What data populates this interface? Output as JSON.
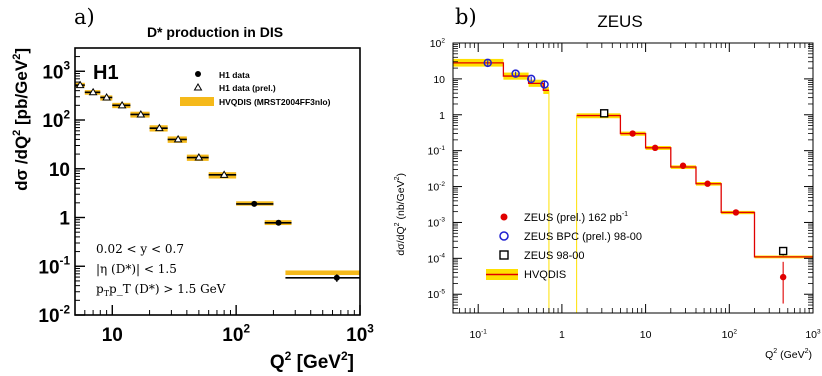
{
  "colors": {
    "band": "#f5b91a",
    "bandB": "#ffe000",
    "redLine": "#e00000",
    "zeus": "#e00000",
    "bpc": "#2020d0",
    "axis": "#000000"
  },
  "chart_data": [
    {
      "type": "scatter",
      "panel_label": "a)",
      "title": "D* production in DIS",
      "experiment": "H1",
      "xlabel": "Q² [GeV²]",
      "ylabel": "dσ /dQ² [pb/GeV²]",
      "x_scale": "log",
      "y_scale": "log",
      "xlim": [
        5,
        1000
      ],
      "ylim": [
        0.01,
        3000
      ],
      "x_ticks": [
        {
          "value": 10,
          "base": "10",
          "exp": ""
        },
        {
          "value": 100,
          "base": "10",
          "exp": "2"
        },
        {
          "value": 1000,
          "base": "10",
          "exp": "3"
        }
      ],
      "y_ticks": [
        {
          "value": 0.01,
          "base": "10",
          "exp": "-2"
        },
        {
          "value": 0.1,
          "base": "10",
          "exp": "-1"
        },
        {
          "value": 1,
          "base": "1",
          "exp": ""
        },
        {
          "value": 10,
          "base": "10",
          "exp": ""
        },
        {
          "value": 100,
          "base": "10",
          "exp": "2"
        },
        {
          "value": 1000,
          "base": "10",
          "exp": "3"
        }
      ],
      "legend": {
        "placement": "top-right",
        "entries": [
          "H1 data",
          "H1 data (prel.)",
          "HVQDIS (MRST2004FF3nlo)"
        ]
      },
      "cuts": [
        "0.02 < y < 0.7",
        "|η (D*)| < 1.5",
        "p_T (D*) > 1.5 GeV"
      ],
      "series": [
        {
          "name": "H1 data (prel.)",
          "marker": "triangle",
          "points": [
            {
              "x": 5.5,
              "xlo": 5,
              "xhi": 6,
              "y": 520
            },
            {
              "x": 7.0,
              "xlo": 6,
              "xhi": 8,
              "y": 370
            },
            {
              "x": 9.0,
              "xlo": 8,
              "xhi": 10,
              "y": 290
            },
            {
              "x": 12.0,
              "xlo": 10,
              "xhi": 14,
              "y": 200
            },
            {
              "x": 17.0,
              "xlo": 14,
              "xhi": 20,
              "y": 130
            },
            {
              "x": 24.0,
              "xlo": 20,
              "xhi": 28,
              "y": 68
            },
            {
              "x": 34.0,
              "xlo": 28,
              "xhi": 40,
              "y": 40
            },
            {
              "x": 50.0,
              "xlo": 40,
              "xhi": 60,
              "y": 17
            },
            {
              "x": 80.0,
              "xlo": 60,
              "xhi": 100,
              "y": 7.5
            }
          ]
        },
        {
          "name": "H1 data",
          "marker": "circle",
          "points": [
            {
              "x": 140,
              "xlo": 100,
              "xhi": 200,
              "y": 1.9
            },
            {
              "x": 220,
              "xlo": 170,
              "xhi": 280,
              "y": 0.78
            },
            {
              "x": 650,
              "xlo": 250,
              "xhi": 1000,
              "y": 0.058,
              "ylo": 0.048,
              "yhi": 0.068
            }
          ]
        }
      ],
      "theory_bands": [
        {
          "xlo": 5,
          "xhi": 6,
          "ylo": 470,
          "yhi": 580
        },
        {
          "xlo": 6,
          "xhi": 8,
          "ylo": 330,
          "yhi": 410
        },
        {
          "xlo": 8,
          "xhi": 10,
          "ylo": 250,
          "yhi": 320
        },
        {
          "xlo": 10,
          "xhi": 14,
          "ylo": 175,
          "yhi": 225
        },
        {
          "xlo": 14,
          "xhi": 20,
          "ylo": 112,
          "yhi": 148
        },
        {
          "xlo": 20,
          "xhi": 28,
          "ylo": 58,
          "yhi": 78
        },
        {
          "xlo": 28,
          "xhi": 40,
          "ylo": 34,
          "yhi": 46
        },
        {
          "xlo": 40,
          "xhi": 60,
          "ylo": 14.5,
          "yhi": 19.5
        },
        {
          "xlo": 60,
          "xhi": 100,
          "ylo": 6.3,
          "yhi": 8.5
        },
        {
          "xlo": 100,
          "xhi": 200,
          "ylo": 1.75,
          "yhi": 2.15
        },
        {
          "xlo": 170,
          "xhi": 280,
          "ylo": 0.7,
          "yhi": 0.88
        },
        {
          "xlo": 250,
          "xhi": 1000,
          "ylo": 0.066,
          "yhi": 0.082
        }
      ]
    },
    {
      "type": "line",
      "panel_label": "b)",
      "title": "ZEUS",
      "xlabel": "Q²  (GeV²)",
      "ylabel": "dσ/dQ²  (nb/GeV²)",
      "x_scale": "log",
      "y_scale": "log",
      "xlim": [
        0.05,
        1000
      ],
      "ylim": [
        3e-06,
        100
      ],
      "x_ticks": [
        {
          "value": 0.1,
          "base": "10",
          "exp": "-1"
        },
        {
          "value": 1,
          "base": "1",
          "exp": ""
        },
        {
          "value": 10,
          "base": "10",
          "exp": ""
        },
        {
          "value": 100,
          "base": "10",
          "exp": "2"
        },
        {
          "value": 1000,
          "base": "10",
          "exp": "3"
        }
      ],
      "y_ticks": [
        {
          "value": 1e-05,
          "base": "10",
          "exp": "-5"
        },
        {
          "value": 0.0001,
          "base": "10",
          "exp": "-4"
        },
        {
          "value": 0.001,
          "base": "10",
          "exp": "-3"
        },
        {
          "value": 0.01,
          "base": "10",
          "exp": "-2"
        },
        {
          "value": 0.1,
          "base": "10",
          "exp": "-1"
        },
        {
          "value": 1,
          "base": "1",
          "exp": ""
        },
        {
          "value": 10,
          "base": "10",
          "exp": ""
        },
        {
          "value": 100,
          "base": "10",
          "exp": "2"
        }
      ],
      "legend": {
        "placement": "bottom-left",
        "entries": [
          "ZEUS (prel.) 162 pb⁻¹",
          "ZEUS BPC (prel.) 98-00",
          "ZEUS 98-00",
          "HVQDIS"
        ]
      },
      "series": [
        {
          "name": "ZEUS BPC (prel.) 98-00",
          "marker": "open-circle",
          "points": [
            {
              "x": 0.13,
              "y": 28,
              "ylo": 23,
              "yhi": 33
            },
            {
              "x": 0.28,
              "y": 14,
              "ylo": 12,
              "yhi": 16
            },
            {
              "x": 0.43,
              "y": 10,
              "ylo": 8.5,
              "yhi": 11.5
            },
            {
              "x": 0.62,
              "y": 7,
              "ylo": 5.5,
              "yhi": 9
            }
          ]
        },
        {
          "name": "ZEUS 98-00",
          "marker": "open-square",
          "points": [
            {
              "x": 3.2,
              "y": 1.1
            },
            {
              "x": 440,
              "y": 0.00016,
              "ylo": 0.00012,
              "yhi": 0.0002
            }
          ]
        },
        {
          "name": "ZEUS (prel.) 162 pb⁻¹",
          "marker": "filled-circle",
          "points": [
            {
              "x": 7,
              "y": 0.3
            },
            {
              "x": 13,
              "y": 0.12
            },
            {
              "x": 28,
              "y": 0.038
            },
            {
              "x": 55,
              "y": 0.012
            },
            {
              "x": 120,
              "y": 0.0019
            },
            {
              "x": 440,
              "y": 3e-05,
              "ylo": 5.5e-06,
              "yhi": 8e-05
            }
          ]
        }
      ],
      "theory_bins": [
        {
          "xlo": 0.05,
          "xhi": 0.2,
          "y": 28,
          "ylo": 22,
          "yhi": 36
        },
        {
          "xlo": 0.2,
          "xhi": 0.4,
          "y": 12,
          "ylo": 9.5,
          "yhi": 15
        },
        {
          "xlo": 0.4,
          "xhi": 0.6,
          "y": 7.5,
          "ylo": 6,
          "yhi": 9.5
        },
        {
          "xlo": 0.6,
          "xhi": 0.7,
          "y": 4.8,
          "ylo": 3.8,
          "yhi": 6
        },
        {
          "xlo": 1.5,
          "xhi": 5,
          "y": 0.95,
          "ylo": 0.8,
          "yhi": 1.1
        },
        {
          "xlo": 5,
          "xhi": 10,
          "y": 0.3,
          "ylo": 0.26,
          "yhi": 0.34
        },
        {
          "xlo": 10,
          "xhi": 20,
          "y": 0.12,
          "ylo": 0.105,
          "yhi": 0.135
        },
        {
          "xlo": 20,
          "xhi": 40,
          "y": 0.035,
          "ylo": 0.031,
          "yhi": 0.039
        },
        {
          "xlo": 40,
          "xhi": 80,
          "y": 0.012,
          "ylo": 0.0106,
          "yhi": 0.0134
        },
        {
          "xlo": 80,
          "xhi": 200,
          "y": 0.0019,
          "ylo": 0.0017,
          "yhi": 0.0021
        },
        {
          "xlo": 200,
          "xhi": 1000,
          "y": 0.00011,
          "ylo": 0.0001,
          "yhi": 0.00012
        }
      ],
      "bin_edges_shown": [
        0.7,
        1.5
      ]
    }
  ]
}
